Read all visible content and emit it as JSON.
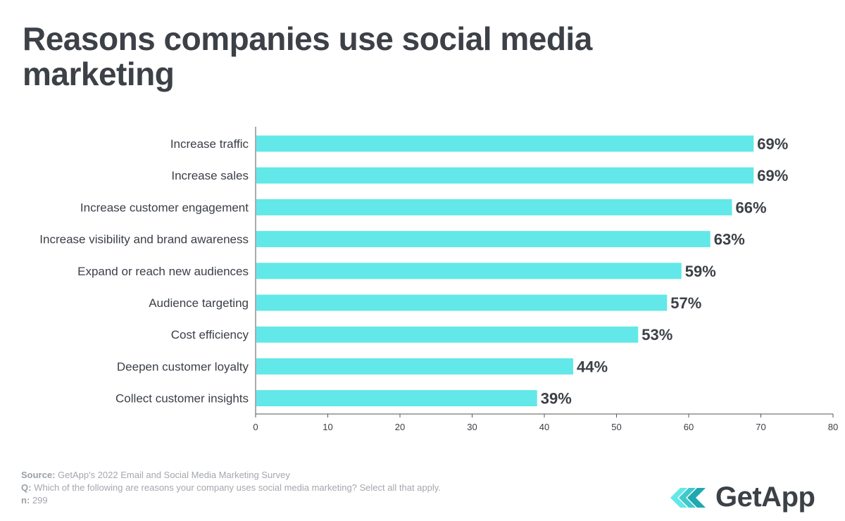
{
  "title": "Reasons companies use social media marketing",
  "chart_data": {
    "type": "bar",
    "orientation": "horizontal",
    "title": "Reasons companies use social media marketing",
    "categories": [
      "Increase traffic",
      "Increase sales",
      "Increase customer engagement",
      "Increase visibility and brand awareness",
      "Expand or reach new audiences",
      "Audience targeting",
      "Cost efficiency",
      "Deepen customer loyalty",
      "Collect customer insights"
    ],
    "values": [
      69,
      69,
      66,
      63,
      59,
      57,
      53,
      44,
      39
    ],
    "value_labels": [
      "69%",
      "69%",
      "66%",
      "63%",
      "59%",
      "57%",
      "53%",
      "44%",
      "39%"
    ],
    "xlim": [
      0,
      80
    ],
    "xticks": [
      0,
      10,
      20,
      30,
      40,
      50,
      60,
      70,
      80
    ],
    "xlabel": "",
    "ylabel": "",
    "bar_color": "#62e8e8"
  },
  "footer": {
    "source_label": "Source:",
    "source_text": " GetApp's 2022 Email and Social Media Marketing Survey",
    "question_label": "Q:",
    "question_text": " Which of the following are reasons your company uses social media marketing? Select all that apply.",
    "n_label": "n:",
    "n_text": " 299"
  },
  "logo": {
    "text": "GetApp",
    "icon": "getapp-chevrons-icon"
  }
}
